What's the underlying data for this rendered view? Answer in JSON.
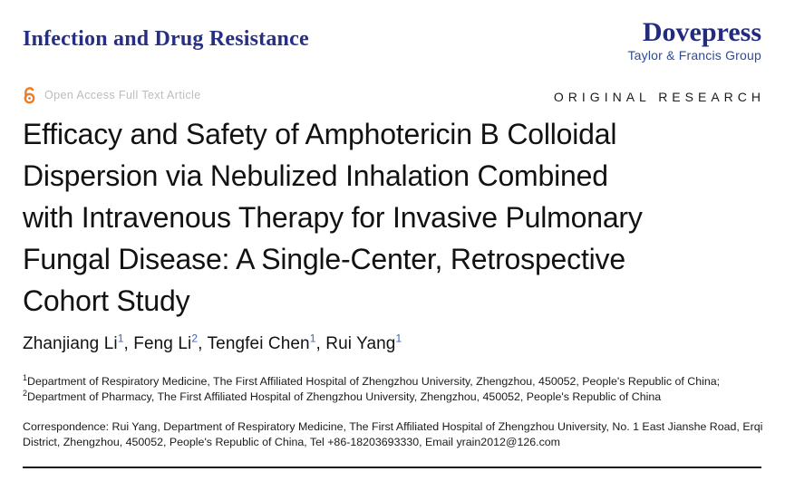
{
  "page": {
    "journal_name": "Infection and Drug Resistance",
    "publisher_name": "Dovepress",
    "publisher_tagline": "Taylor & Francis Group",
    "open_access_label": "Open Access Full Text Article",
    "article_type_label": "ORIGINAL RESEARCH"
  },
  "article": {
    "title_lines": [
      "Efficacy and Safety of Amphotericin B Colloidal",
      "Dispersion via Nebulized Inhalation Combined",
      "with Intravenous Therapy for Invasive Pulmonary",
      "Fungal Disease: A Single-Center, Retrospective",
      "Cohort Study"
    ],
    "author_separator": ", ",
    "authors": [
      {
        "name": "Zhanjiang Li",
        "sup": "1"
      },
      {
        "name": "Feng Li",
        "sup": "2"
      },
      {
        "name": "Tengfei Chen",
        "sup": "1"
      },
      {
        "name": "Rui Yang",
        "sup": "1"
      }
    ],
    "affiliations": [
      {
        "sup": "1",
        "text": "Department of Respiratory Medicine, The First Affiliated Hospital of Zhengzhou University, Zhengzhou, 450052, People's Republic of China;"
      },
      {
        "sup": "2",
        "text": "Department of Pharmacy, The First Affiliated Hospital of Zhengzhou University, Zhengzhou, 450052, People's Republic of China"
      }
    ],
    "correspondence": "Correspondence: Rui Yang, Department of Respiratory Medicine, The First Affiliated Hospital of Zhengzhou University, No. 1 East Jianshe Road, Erqi District, Zhengzhou, 450052, People's Republic of China, Tel +86-18203693330, Email yrain2012@126.com"
  },
  "colors": {
    "journal_navy": "#272f85",
    "publisher_navy": "#232c7c",
    "tagline_blue": "#2d4a9c",
    "open_access_orange": "#ee7d23",
    "muted_gray": "#bcbcba",
    "text_black": "#1a1a1a",
    "superscript_blue": "#3e62b8"
  }
}
